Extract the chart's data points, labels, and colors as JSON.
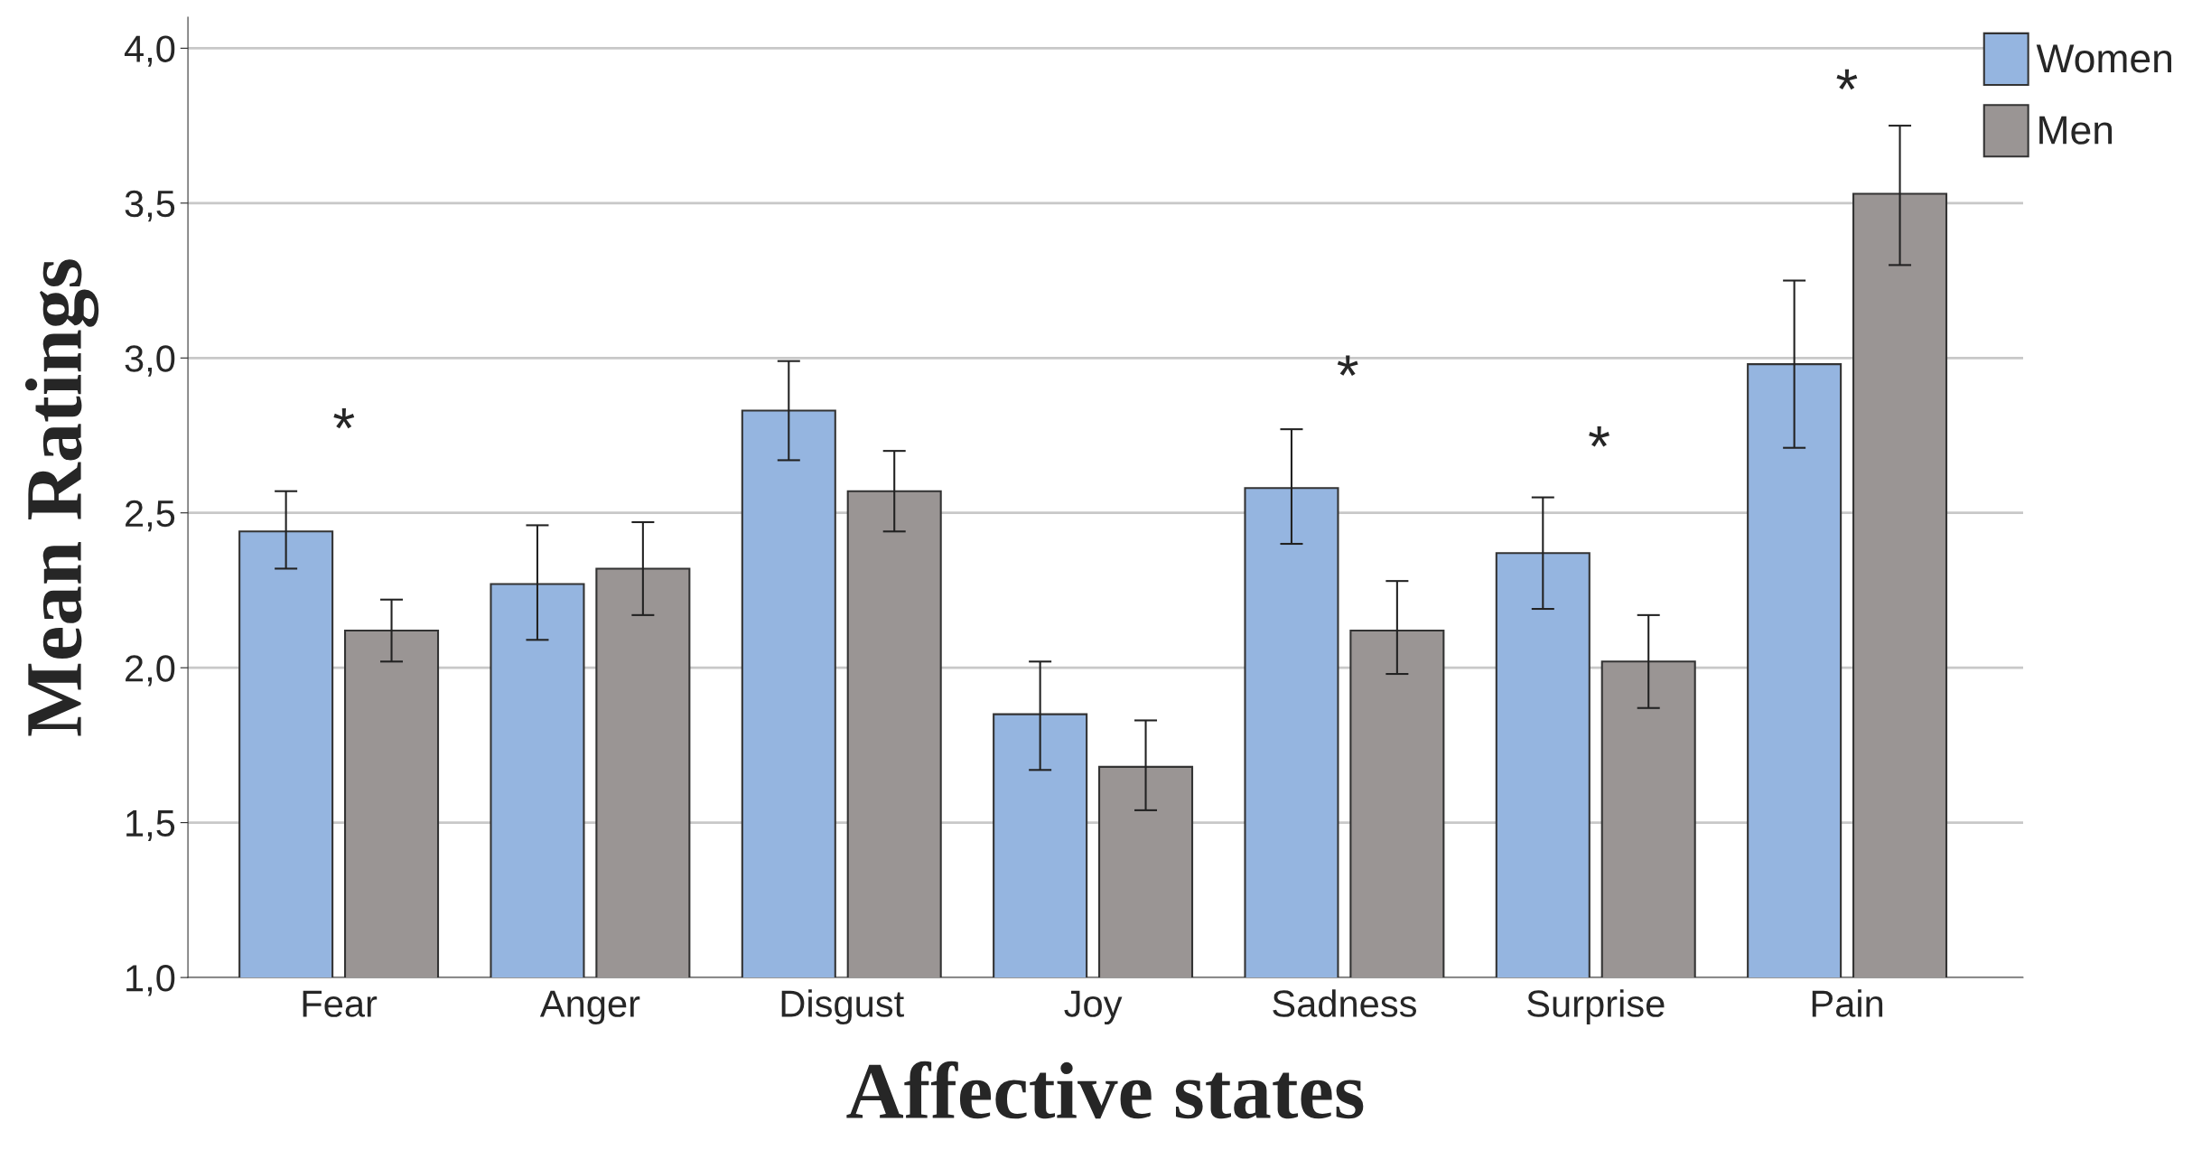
{
  "chart_data": {
    "type": "bar",
    "xlabel": "Affective states",
    "ylabel": "Mean Ratings",
    "categories": [
      "Fear",
      "Anger",
      "Disgust",
      "Joy",
      "Sadness",
      "Surprise",
      "Pain"
    ],
    "series": [
      {
        "name": "Women",
        "color": "#95b5e0",
        "values": [
          2.44,
          2.27,
          2.83,
          1.85,
          2.58,
          2.37,
          2.98
        ],
        "errors": [
          [
            2.32,
            2.57
          ],
          [
            2.09,
            2.46
          ],
          [
            2.67,
            2.99
          ],
          [
            1.67,
            2.02
          ],
          [
            2.4,
            2.77
          ],
          [
            2.19,
            2.55
          ],
          [
            2.71,
            3.25
          ]
        ]
      },
      {
        "name": "Men",
        "color": "#9a9594",
        "values": [
          2.12,
          2.32,
          2.57,
          1.68,
          2.12,
          2.02,
          3.53
        ],
        "errors": [
          [
            2.02,
            2.22
          ],
          [
            2.17,
            2.47
          ],
          [
            2.44,
            2.7
          ],
          [
            1.54,
            1.83
          ],
          [
            1.98,
            2.28
          ],
          [
            1.87,
            2.17
          ],
          [
            3.3,
            3.75
          ]
        ]
      }
    ],
    "ylim": [
      1,
      4.1
    ],
    "yticks": [
      {
        "value": 1,
        "label": "1,0"
      },
      {
        "value": 1.5,
        "label": "1,5"
      },
      {
        "value": 2,
        "label": "2,0"
      },
      {
        "value": 2.5,
        "label": "2,5"
      },
      {
        "value": 3,
        "label": "3,0"
      },
      {
        "value": 3.5,
        "label": "3,5"
      },
      {
        "value": 4,
        "label": "4,0"
      }
    ],
    "grid": "y",
    "legend": "top right",
    "annotations": [
      "*",
      "*",
      "*",
      "*"
    ]
  }
}
